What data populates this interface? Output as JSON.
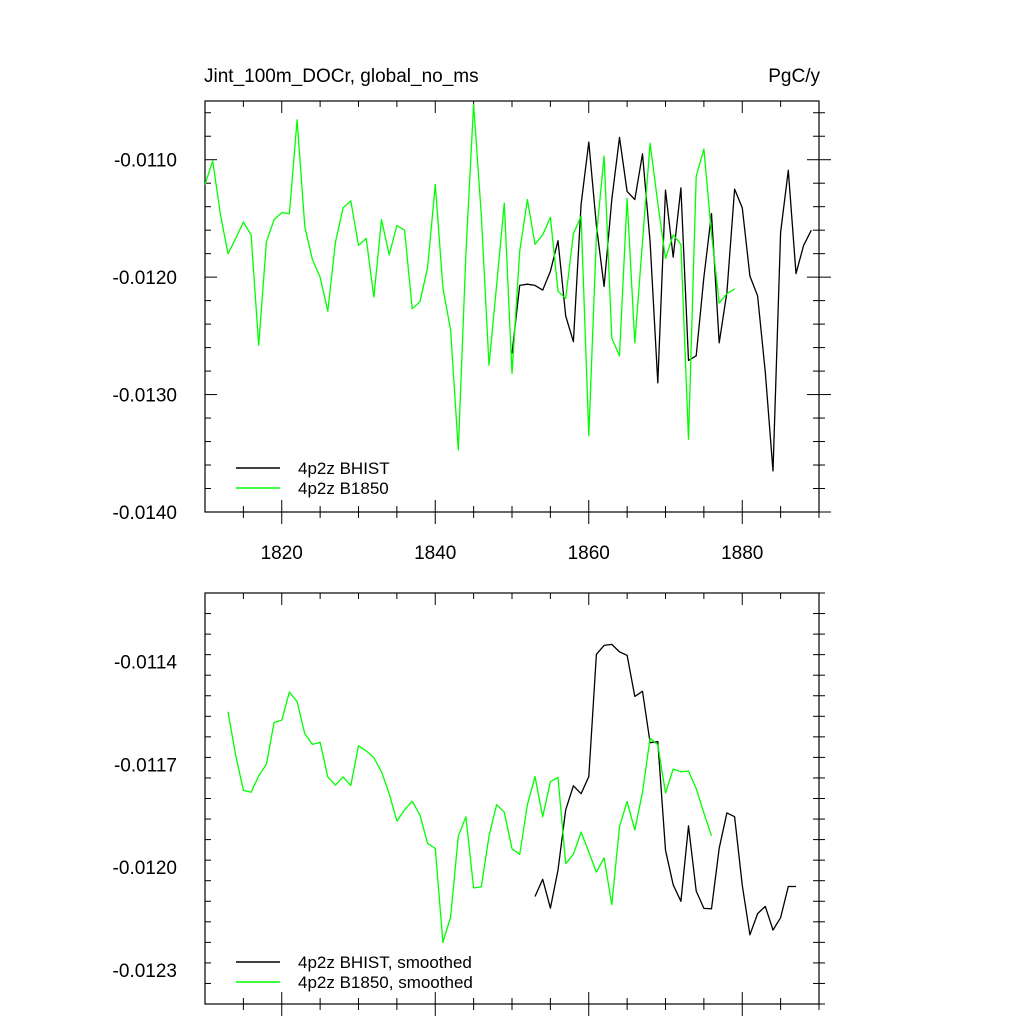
{
  "chart_data": [
    {
      "type": "line",
      "title": "Jint_100m_DOCr, global_no_ms",
      "units_label": "PgC/y",
      "xlim": [
        1810,
        1890
      ],
      "ylim": [
        -0.014,
        -0.0105
      ],
      "x_ticks": [
        1820,
        1840,
        1860,
        1880
      ],
      "x_tick_labels": [
        "1820",
        "1840",
        "1860",
        "1880"
      ],
      "y_ticks": [
        -0.011,
        -0.012,
        -0.013,
        -0.014
      ],
      "y_tick_labels": [
        "-0.0110",
        "-0.0120",
        "-0.0130",
        "-0.0140"
      ],
      "legend_position": "bottom-left",
      "series": [
        {
          "name": "4p2z BHIST",
          "color": "#000000",
          "x": [
            1850,
            1851,
            1852,
            1853,
            1854,
            1855,
            1856,
            1857,
            1858,
            1859,
            1860,
            1861,
            1862,
            1863,
            1864,
            1865,
            1866,
            1867,
            1868,
            1869,
            1870,
            1871,
            1872,
            1873,
            1874,
            1875,
            1876,
            1877,
            1878,
            1879,
            1880,
            1881,
            1882,
            1883,
            1884,
            1885,
            1886,
            1887,
            1888,
            1889
          ],
          "values": [
            -0.01265,
            -0.01207,
            -0.01206,
            -0.01207,
            -0.01211,
            -0.01195,
            -0.01169,
            -0.01233,
            -0.01255,
            -0.01138,
            -0.01085,
            -0.01156,
            -0.01208,
            -0.01134,
            -0.01081,
            -0.01127,
            -0.01134,
            -0.01095,
            -0.0117,
            -0.0129,
            -0.01126,
            -0.01183,
            -0.01124,
            -0.01271,
            -0.01267,
            -0.012,
            -0.01146,
            -0.01256,
            -0.01213,
            -0.01125,
            -0.01141,
            -0.01199,
            -0.01216,
            -0.01281,
            -0.01365,
            -0.01162,
            -0.01109,
            -0.01197,
            -0.01173,
            -0.0116
          ]
        },
        {
          "name": "4p2z B1850",
          "color": "#00ff00",
          "x": [
            1810,
            1811,
            1812,
            1813,
            1814,
            1815,
            1816,
            1817,
            1818,
            1819,
            1820,
            1821,
            1822,
            1823,
            1824,
            1825,
            1826,
            1827,
            1828,
            1829,
            1830,
            1831,
            1832,
            1833,
            1834,
            1835,
            1836,
            1837,
            1838,
            1839,
            1840,
            1841,
            1842,
            1843,
            1844,
            1845,
            1846,
            1847,
            1848,
            1849,
            1850,
            1851,
            1852,
            1853,
            1854,
            1855,
            1856,
            1857,
            1858,
            1859,
            1860,
            1861,
            1862,
            1863,
            1864,
            1865,
            1866,
            1867,
            1868,
            1869,
            1870,
            1871,
            1872,
            1873,
            1874,
            1875,
            1876,
            1877,
            1878,
            1879
          ],
          "values": [
            -0.01121,
            -0.01101,
            -0.01146,
            -0.0118,
            -0.01167,
            -0.01153,
            -0.01164,
            -0.01258,
            -0.0117,
            -0.01151,
            -0.01145,
            -0.01146,
            -0.01066,
            -0.01157,
            -0.01185,
            -0.012,
            -0.01229,
            -0.0117,
            -0.01141,
            -0.01135,
            -0.01173,
            -0.01167,
            -0.01217,
            -0.01151,
            -0.01181,
            -0.01156,
            -0.0116,
            -0.01227,
            -0.01221,
            -0.01192,
            -0.01121,
            -0.01209,
            -0.01245,
            -0.01347,
            -0.0118,
            -0.01053,
            -0.01147,
            -0.01275,
            -0.01207,
            -0.01137,
            -0.01282,
            -0.01178,
            -0.01134,
            -0.01172,
            -0.01164,
            -0.01149,
            -0.01212,
            -0.01218,
            -0.01163,
            -0.01148,
            -0.01335,
            -0.01165,
            -0.01097,
            -0.01252,
            -0.01267,
            -0.01133,
            -0.01256,
            -0.0117,
            -0.01086,
            -0.01137,
            -0.01184,
            -0.01164,
            -0.01172,
            -0.01338,
            -0.01114,
            -0.01091,
            -0.01163,
            -0.01222,
            -0.01214,
            -0.0121
          ]
        }
      ]
    },
    {
      "type": "line",
      "xlim": [
        1810,
        1890
      ],
      "ylim": [
        -0.0124,
        -0.0112
      ],
      "y_ticks": [
        -0.0114,
        -0.0117,
        -0.012,
        -0.0123
      ],
      "y_tick_labels": [
        "-0.0114",
        "-0.0117",
        "-0.0120",
        "-0.0123"
      ],
      "legend_position": "bottom-left",
      "series": [
        {
          "name": "4p2z BHIST, smoothed",
          "color": "#000000",
          "x": [
            1853,
            1854,
            1855,
            1856,
            1857,
            1858,
            1859,
            1860,
            1861,
            1862,
            1863,
            1864,
            1865,
            1866,
            1867,
            1868,
            1869,
            1870,
            1871,
            1872,
            1873,
            1874,
            1875,
            1876,
            1877,
            1878,
            1879,
            1880,
            1881,
            1882,
            1883,
            1884,
            1885,
            1886,
            1887
          ],
          "values": [
            -0.012086,
            -0.012036,
            -0.01212,
            -0.012009,
            -0.011833,
            -0.011763,
            -0.011786,
            -0.011736,
            -0.011379,
            -0.011353,
            -0.01135,
            -0.011372,
            -0.011382,
            -0.011502,
            -0.011487,
            -0.011637,
            -0.011634,
            -0.011951,
            -0.012052,
            -0.0121,
            -0.01188,
            -0.01207,
            -0.012121,
            -0.012122,
            -0.011945,
            -0.011842,
            -0.011853,
            -0.012054,
            -0.012198,
            -0.012136,
            -0.012115,
            -0.012184,
            -0.012148,
            -0.012057,
            -0.012057
          ]
        },
        {
          "name": "4p2z B1850, smoothed",
          "color": "#00ff00",
          "x": [
            1813,
            1814,
            1815,
            1816,
            1817,
            1818,
            1819,
            1820,
            1821,
            1822,
            1823,
            1824,
            1825,
            1826,
            1827,
            1828,
            1829,
            1830,
            1831,
            1832,
            1833,
            1834,
            1835,
            1836,
            1837,
            1838,
            1839,
            1840,
            1841,
            1842,
            1843,
            1844,
            1845,
            1846,
            1847,
            1848,
            1849,
            1850,
            1851,
            1852,
            1853,
            1854,
            1855,
            1856,
            1857,
            1858,
            1859,
            1860,
            1861,
            1862,
            1863,
            1864,
            1865,
            1866,
            1867,
            1868,
            1869,
            1870,
            1871,
            1872,
            1873,
            1874,
            1875,
            1876
          ],
          "values": [
            -0.011547,
            -0.011674,
            -0.011776,
            -0.011782,
            -0.011734,
            -0.0117,
            -0.011578,
            -0.011571,
            -0.011489,
            -0.011517,
            -0.011611,
            -0.011642,
            -0.011636,
            -0.011737,
            -0.011761,
            -0.011737,
            -0.011762,
            -0.011646,
            -0.011661,
            -0.011681,
            -0.011722,
            -0.011786,
            -0.011866,
            -0.011833,
            -0.011808,
            -0.011848,
            -0.011931,
            -0.011946,
            -0.01222,
            -0.012146,
            -0.01191,
            -0.011853,
            -0.012061,
            -0.012058,
            -0.01191,
            -0.011818,
            -0.01184,
            -0.011947,
            -0.011963,
            -0.011818,
            -0.011736,
            -0.011853,
            -0.011751,
            -0.011738,
            -0.01199,
            -0.011963,
            -0.011898,
            -0.011956,
            -0.012015,
            -0.011973,
            -0.01211,
            -0.011882,
            -0.011809,
            -0.011892,
            -0.011782,
            -0.011624,
            -0.011643,
            -0.011784,
            -0.011714,
            -0.011722,
            -0.01172,
            -0.011771,
            -0.011842,
            -0.011909
          ]
        }
      ]
    }
  ]
}
